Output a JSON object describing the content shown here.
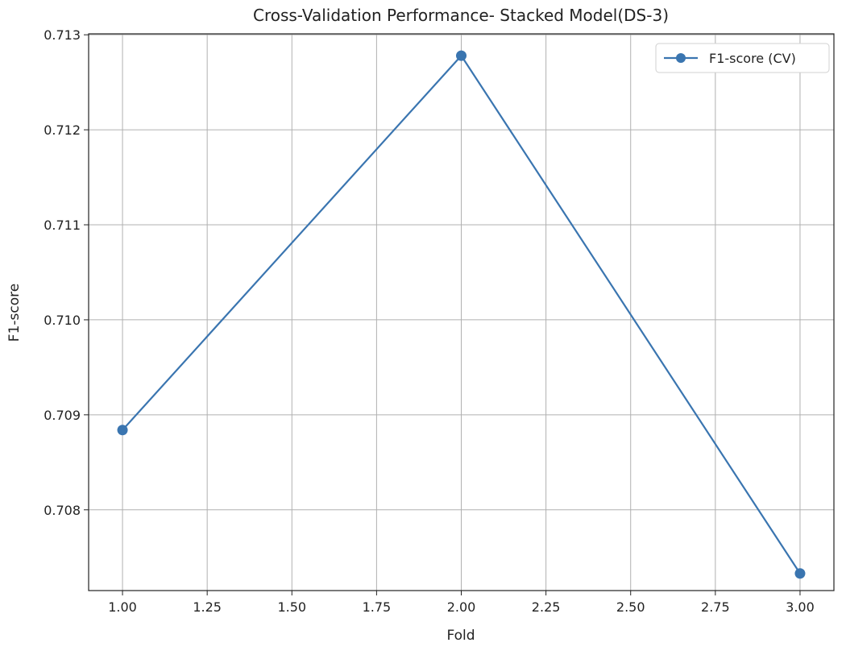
{
  "chart_data": {
    "type": "line",
    "title": "Cross-Validation Performance- Stacked Model(DS-3)",
    "xlabel": "Fold",
    "ylabel": "F1-score",
    "xlim": [
      0.9,
      3.1
    ],
    "ylim": [
      0.70715,
      0.71301
    ],
    "x_ticks": [
      1.0,
      1.25,
      1.5,
      1.75,
      2.0,
      2.25,
      2.5,
      2.75,
      3.0
    ],
    "x_tick_labels": [
      "1.00",
      "1.25",
      "1.50",
      "1.75",
      "2.00",
      "2.25",
      "2.50",
      "2.75",
      "3.00"
    ],
    "y_ticks": [
      0.708,
      0.709,
      0.71,
      0.711,
      0.712,
      0.713
    ],
    "y_tick_labels": [
      "0.708",
      "0.709",
      "0.710",
      "0.711",
      "0.712",
      "0.713"
    ],
    "grid": true,
    "legend_position": "top-right",
    "series": [
      {
        "name": "F1-score (CV)",
        "color": "#3a75b0",
        "marker": "circle",
        "x": [
          1,
          2,
          3
        ],
        "y": [
          0.70884,
          0.71278,
          0.70733
        ]
      }
    ]
  }
}
